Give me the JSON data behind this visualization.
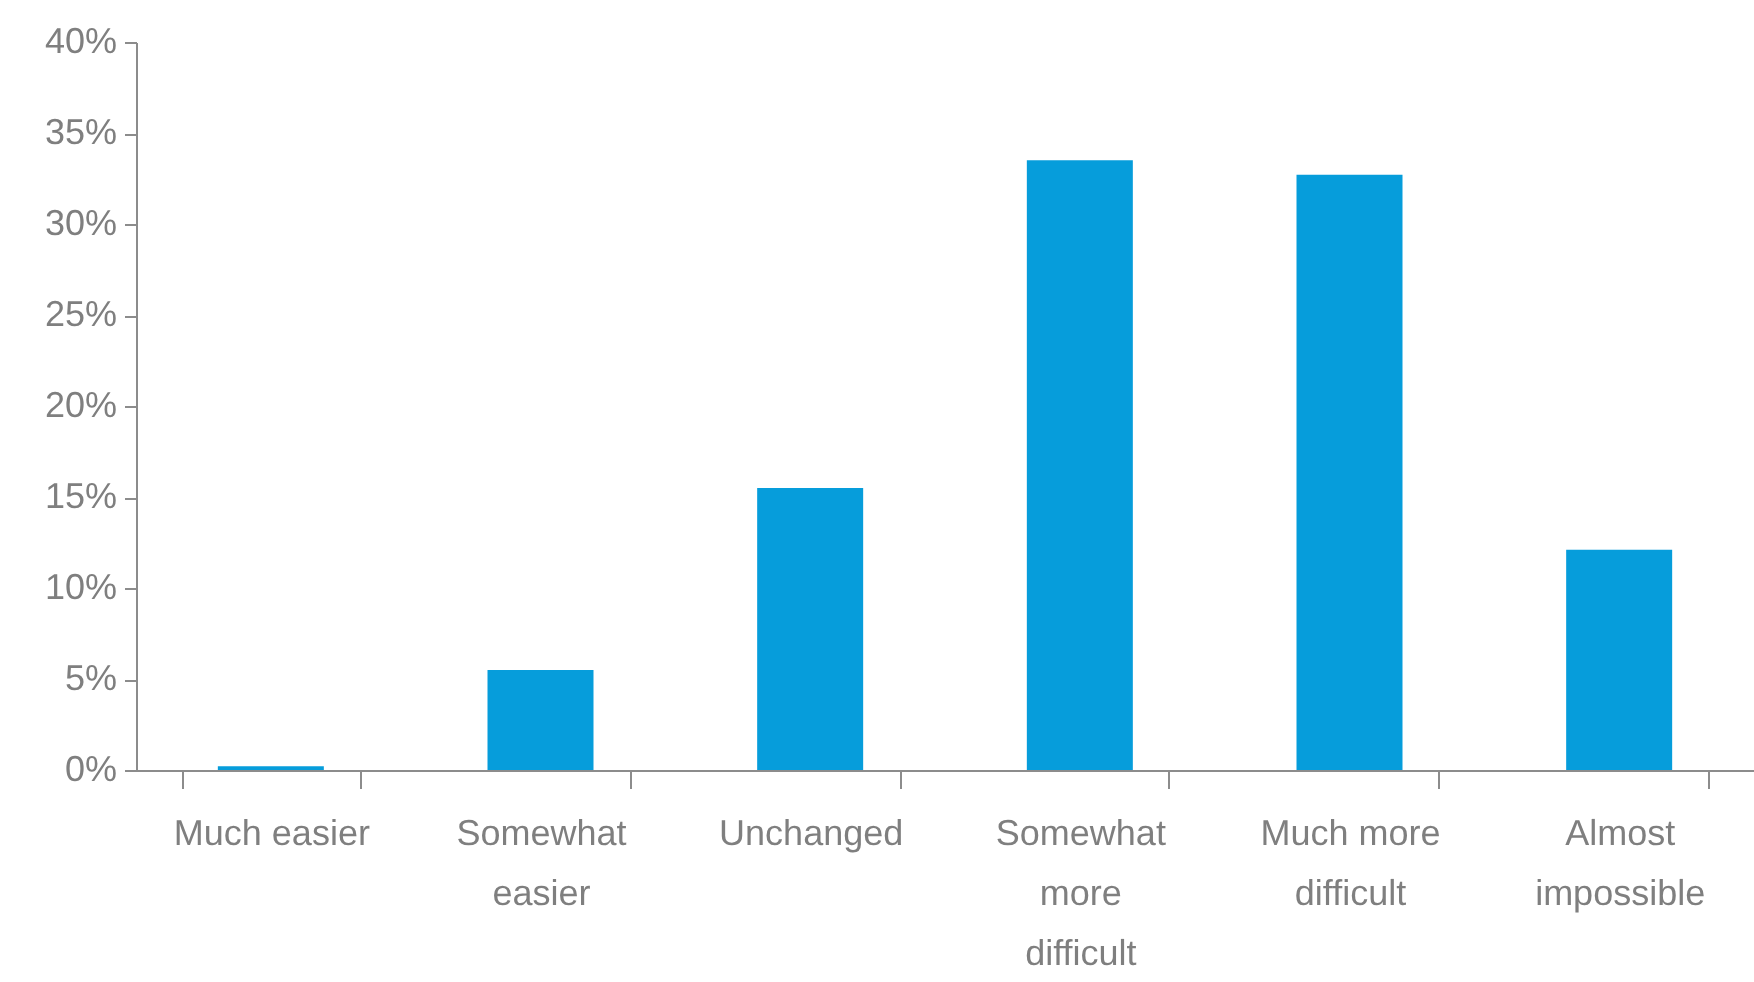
{
  "chart_data": {
    "type": "bar",
    "categories": [
      "Much easier",
      "Somewhat easier",
      "Unchanged",
      "Somewhat more difficult",
      "Much more difficult",
      "Almost impossible"
    ],
    "values": [
      0.2,
      5.5,
      15.5,
      33.5,
      32.7,
      12.1
    ],
    "color": "#069ddb",
    "ylim": [
      0,
      40
    ],
    "yticks": [
      {
        "value": 0,
        "label": "0%"
      },
      {
        "value": 5,
        "label": "5%"
      },
      {
        "value": 10,
        "label": "10%"
      },
      {
        "value": 15,
        "label": "15%"
      },
      {
        "value": 20,
        "label": "20%"
      },
      {
        "value": 25,
        "label": "25%"
      },
      {
        "value": 30,
        "label": "30%"
      },
      {
        "value": 35,
        "label": "35%"
      },
      {
        "value": 40,
        "label": "40%"
      }
    ],
    "grid": false
  }
}
